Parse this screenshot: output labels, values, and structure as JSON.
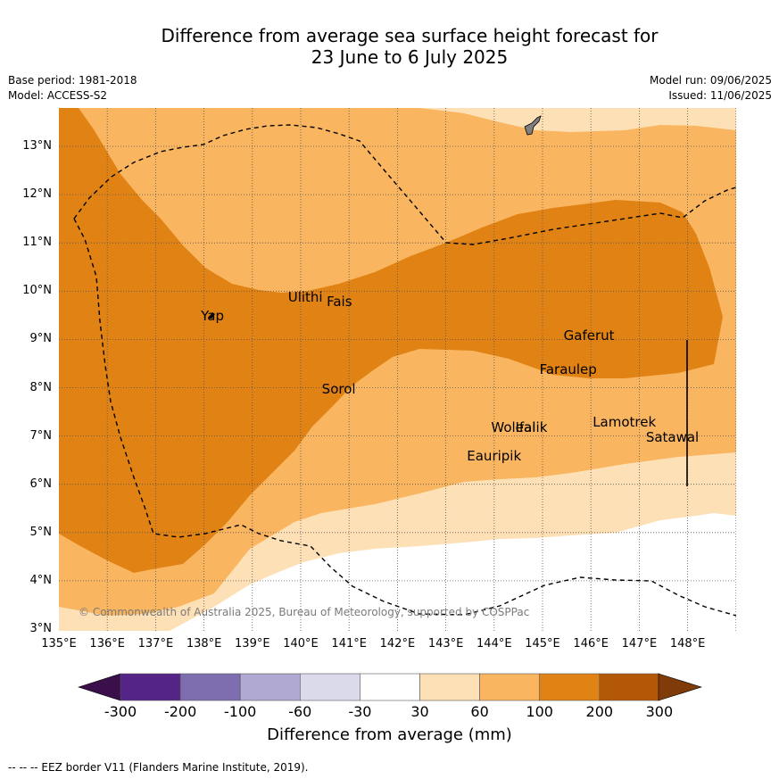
{
  "title": {
    "line1": "Difference from average sea surface height forecast for",
    "line2": "23 June to 6 July 2025"
  },
  "meta": {
    "base_period": "Base period: 1981-2018",
    "model": "Model: ACCESS-S2",
    "model_run": "Model run: 09/06/2025",
    "issued": "Issued: 11/06/2025"
  },
  "map": {
    "lat_ticks": [
      "13°N",
      "12°N",
      "11°N",
      "10°N",
      "9°N",
      "8°N",
      "7°N",
      "6°N",
      "5°N",
      "4°N",
      "3°N"
    ],
    "lon_ticks": [
      "135°E",
      "136°E",
      "137°E",
      "138°E",
      "139°E",
      "140°E",
      "141°E",
      "142°E",
      "143°E",
      "144°E",
      "145°E",
      "146°E",
      "147°E",
      "148°E"
    ],
    "places": [
      {
        "name": "Yap",
        "lon": 137.9,
        "lat": 9.5
      },
      {
        "name": "Ulithi",
        "lon": 139.7,
        "lat": 9.9
      },
      {
        "name": "Fais",
        "lon": 140.5,
        "lat": 9.8
      },
      {
        "name": "Gaferut",
        "lon": 145.4,
        "lat": 9.1
      },
      {
        "name": "Faraulep",
        "lon": 144.9,
        "lat": 8.4
      },
      {
        "name": "Sorol",
        "lon": 140.4,
        "lat": 8.0
      },
      {
        "name": "Woleai",
        "lon": 143.9,
        "lat": 7.2
      },
      {
        "name": "Ifalik",
        "lon": 144.4,
        "lat": 7.2
      },
      {
        "name": "Lamotrek",
        "lon": 146.0,
        "lat": 7.3
      },
      {
        "name": "Satawal",
        "lon": 147.1,
        "lat": 7.0
      },
      {
        "name": "Eauripik",
        "lon": 143.4,
        "lat": 6.6
      }
    ],
    "copyright": "© Commonwealth of Australia 2025, Bureau of Meteorology, supported by COSPPac"
  },
  "colorbar": {
    "ticks": [
      "-300",
      "-200",
      "-100",
      "-60",
      "-30",
      "30",
      "60",
      "100",
      "200",
      "300"
    ],
    "colors": [
      "#3b0f4a",
      "#542487",
      "#7e6daf",
      "#b0a9d1",
      "#dbdaeb",
      "#ffffff",
      "#fde0b6",
      "#f9b55f",
      "#e08214",
      "#b35806",
      "#7f3b08"
    ],
    "label": "Difference from average (mm)"
  },
  "legend": {
    "footnote": "--  --  -- EEZ border V11 (Flanders Marine Institute, 2019)."
  }
}
